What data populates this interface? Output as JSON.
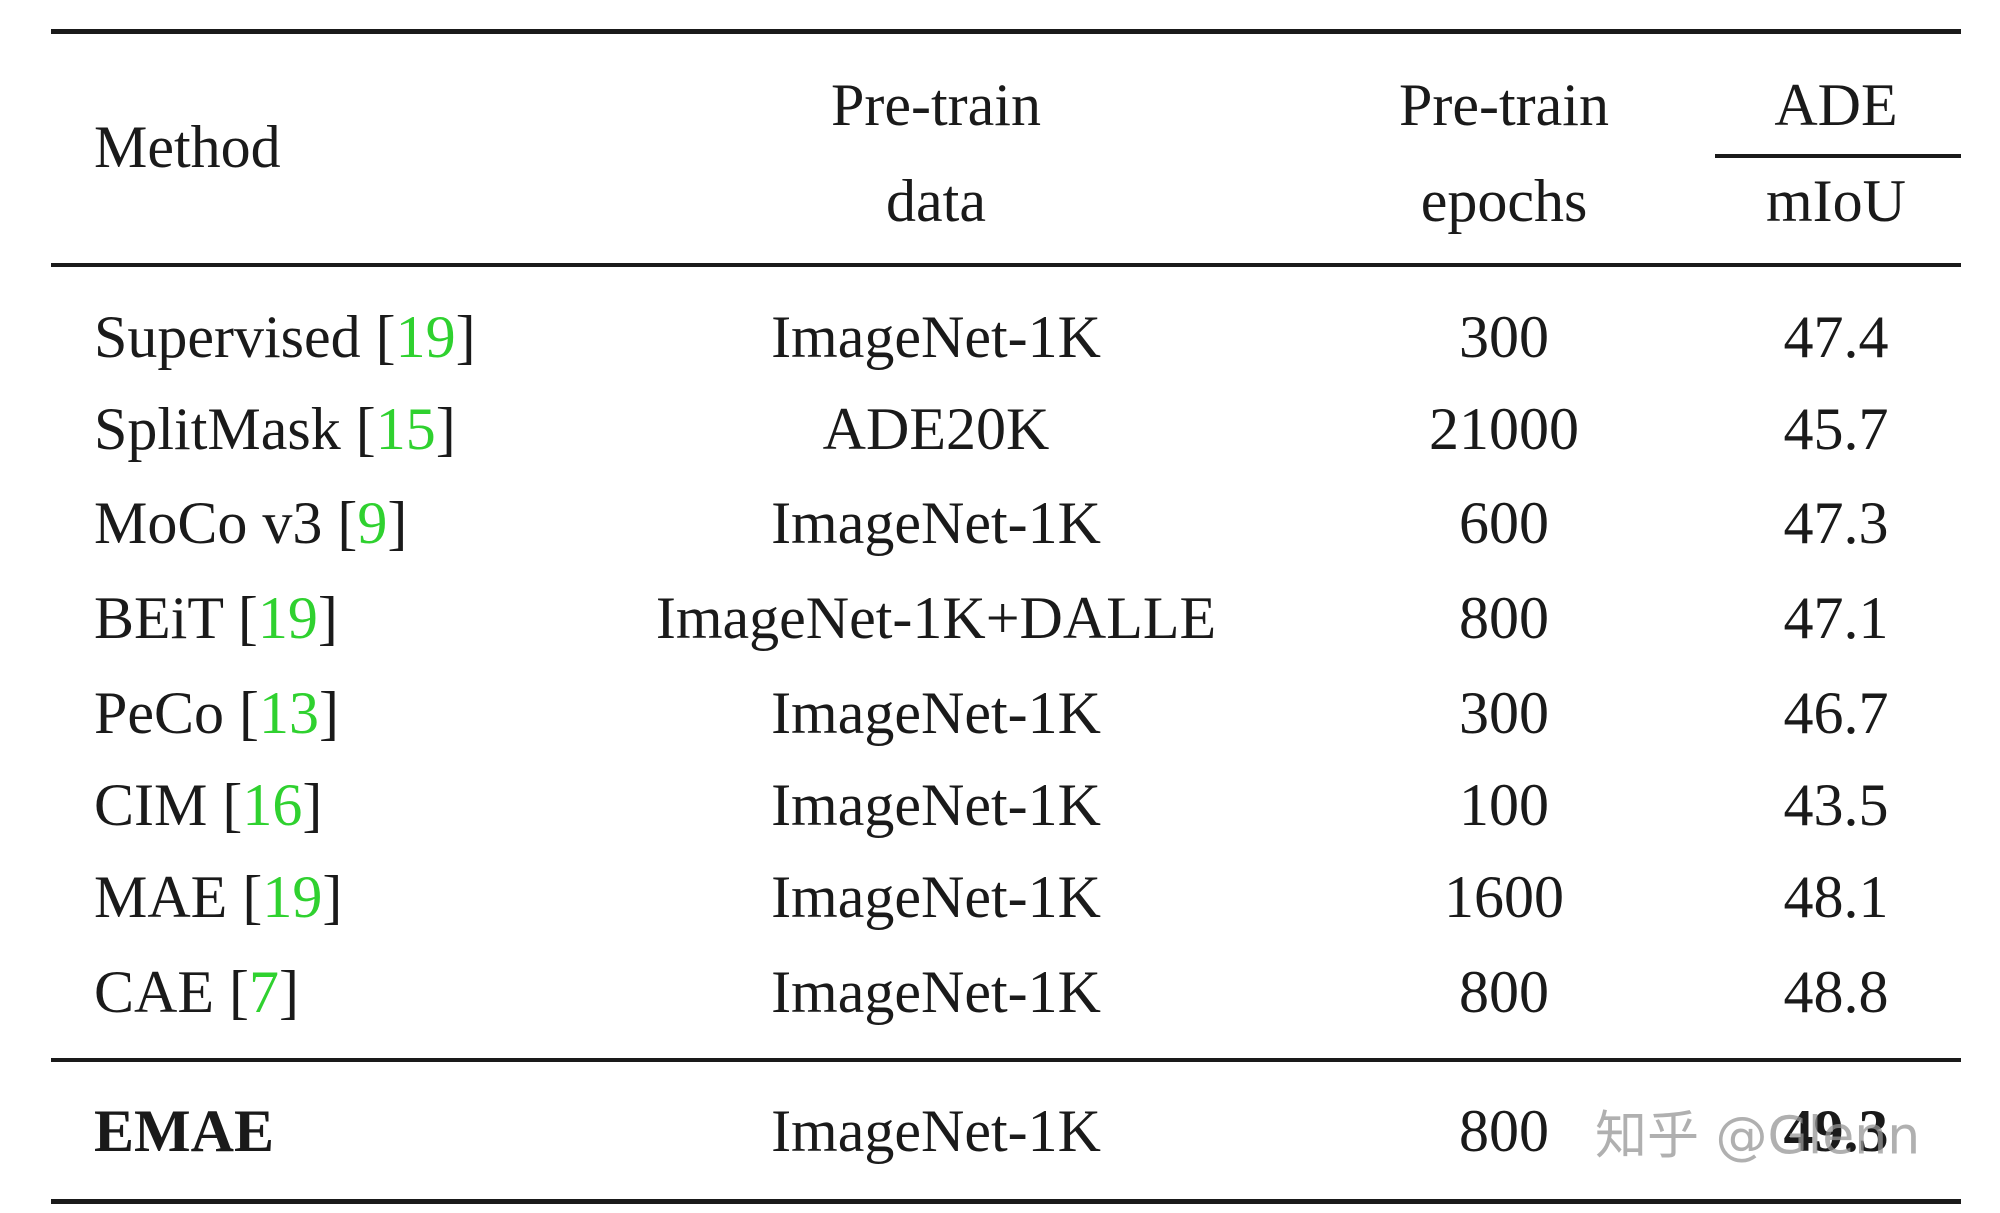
{
  "table": {
    "header": {
      "method": "Method",
      "data": [
        "Pre-train",
        "data"
      ],
      "epochs": [
        "Pre-train",
        "epochs"
      ],
      "group": "ADE",
      "metric": "mIoU"
    },
    "ref_brackets": [
      "[",
      "]"
    ],
    "rows": [
      {
        "method": "Supervised",
        "ref": "19",
        "data": "ImageNet-1K",
        "epochs": 300,
        "miou": 47.4
      },
      {
        "method": "SplitMask",
        "ref": "15",
        "data": "ADE20K",
        "epochs": 21000,
        "miou": 45.7
      },
      {
        "method": "MoCo v3",
        "ref": "9",
        "data": "ImageNet-1K",
        "epochs": 600,
        "miou": 47.3
      },
      {
        "method": "BEiT",
        "ref": "19",
        "data": "ImageNet-1K+DALLE",
        "epochs": 800,
        "miou": 47.1
      },
      {
        "method": "PeCo",
        "ref": "13",
        "data": "ImageNet-1K",
        "epochs": 300,
        "miou": 46.7
      },
      {
        "method": "CIM",
        "ref": "16",
        "data": "ImageNet-1K",
        "epochs": 100,
        "miou": 43.5
      },
      {
        "method": "MAE",
        "ref": "19",
        "data": "ImageNet-1K",
        "epochs": 1600,
        "miou": 48.1
      },
      {
        "method": "CAE",
        "ref": "7",
        "data": "ImageNet-1K",
        "epochs": 800,
        "miou": 48.8
      }
    ],
    "ours": {
      "method": "EMAE",
      "data": "ImageNet-1K",
      "epochs": 800,
      "miou": 49.3
    }
  },
  "watermark": "知乎 @Glenn"
}
